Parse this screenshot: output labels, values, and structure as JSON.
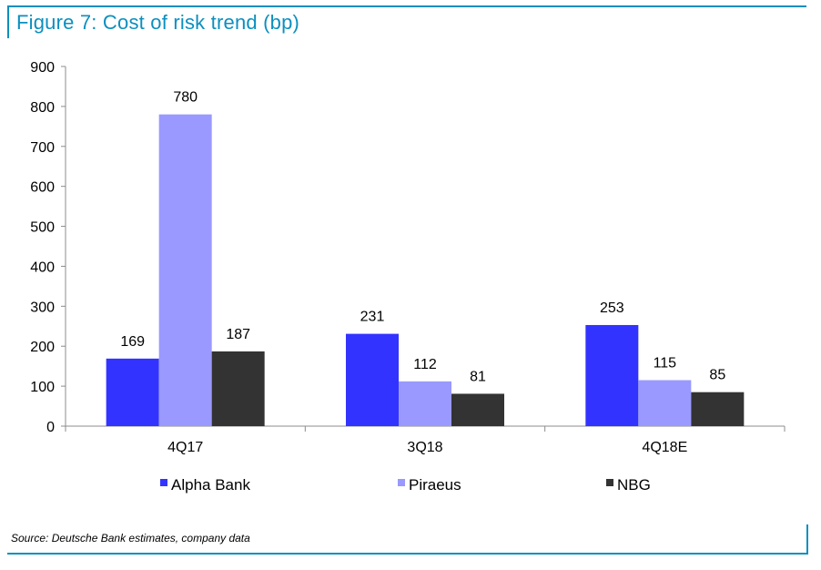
{
  "title": "Figure 7: Cost of risk trend (bp)",
  "source": "Source: Deutsche Bank estimates, company data",
  "chart_data": {
    "type": "bar",
    "title": "Figure 7: Cost of risk trend (bp)",
    "xlabel": "",
    "ylabel": "",
    "categories": [
      "4Q17",
      "3Q18",
      "4Q18E"
    ],
    "series": [
      {
        "name": "Alpha Bank",
        "values": [
          169,
          231,
          253
        ],
        "color": "#3333ff"
      },
      {
        "name": "Piraeus",
        "values": [
          780,
          112,
          115
        ],
        "color": "#9999ff"
      },
      {
        "name": "NBG",
        "values": [
          187,
          81,
          85
        ],
        "color": "#333333"
      }
    ],
    "ylim": [
      0,
      900
    ],
    "yticks": [
      0,
      100,
      200,
      300,
      400,
      500,
      600,
      700,
      800,
      900
    ],
    "grid": false,
    "data_labels": true,
    "legend": "bottom"
  }
}
